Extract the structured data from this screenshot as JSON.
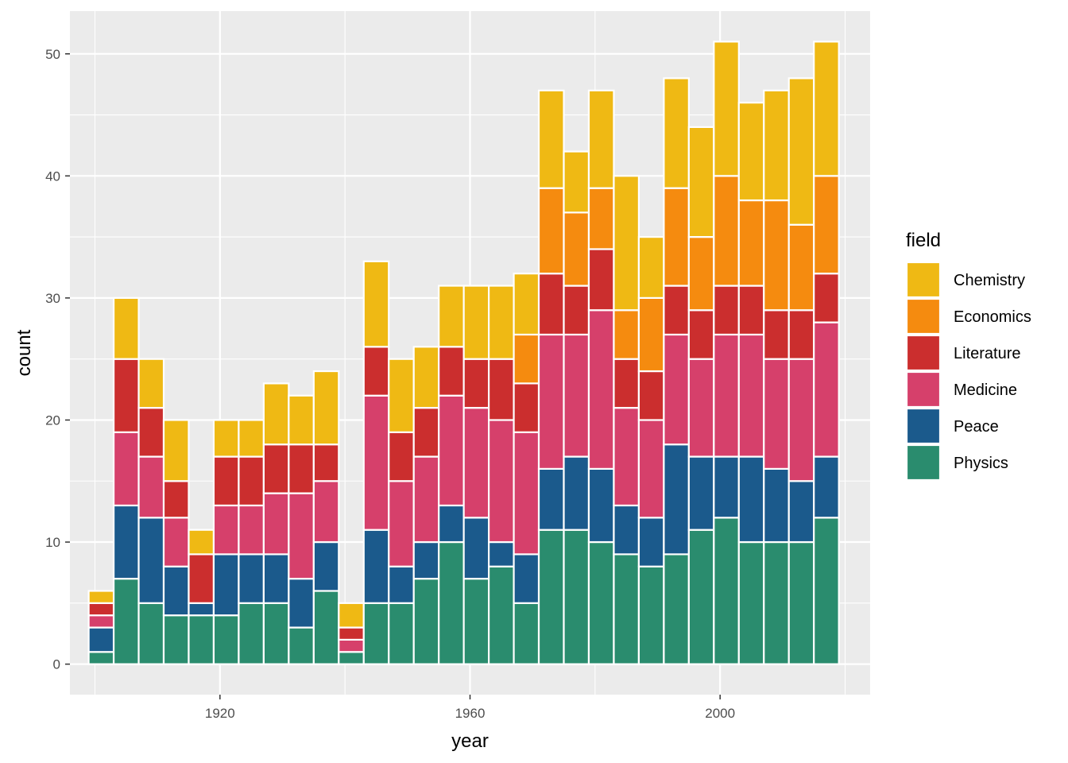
{
  "chart_data": {
    "type": "bar",
    "stacked": true,
    "xlabel": "year",
    "ylabel": "count",
    "xlim": [
      1896,
      2024
    ],
    "ylim": [
      -2.5,
      53.5
    ],
    "x_ticks": [
      1920,
      1960,
      2000
    ],
    "y_ticks": [
      0,
      10,
      20,
      30,
      40,
      50
    ],
    "grid": true,
    "legend_title": "field",
    "legend_position": "right",
    "bin_width": 4,
    "x": [
      1901,
      1905,
      1909,
      1913,
      1917,
      1921,
      1925,
      1929,
      1933,
      1937,
      1941,
      1945,
      1949,
      1953,
      1957,
      1961,
      1965,
      1969,
      1973,
      1977,
      1981,
      1985,
      1989,
      1993,
      1997,
      2001,
      2005,
      2009,
      2013,
      2017
    ],
    "series": [
      {
        "name": "Physics",
        "color": "#2A8C6E",
        "values": [
          1,
          7,
          5,
          4,
          4,
          4,
          5,
          5,
          3,
          6,
          1,
          5,
          5,
          7,
          10,
          7,
          8,
          5,
          11,
          11,
          10,
          9,
          8,
          9,
          11,
          12,
          10,
          10,
          10,
          12
        ]
      },
      {
        "name": "Peace",
        "color": "#1B5A8C",
        "values": [
          2,
          6,
          7,
          4,
          1,
          5,
          4,
          4,
          4,
          4,
          0,
          6,
          3,
          3,
          3,
          5,
          2,
          4,
          5,
          6,
          6,
          4,
          4,
          9,
          6,
          5,
          7,
          6,
          5,
          5
        ]
      },
      {
        "name": "Medicine",
        "color": "#D6406B",
        "values": [
          1,
          6,
          5,
          4,
          0,
          4,
          4,
          5,
          7,
          5,
          1,
          11,
          7,
          7,
          9,
          9,
          10,
          10,
          11,
          10,
          13,
          8,
          8,
          9,
          8,
          10,
          10,
          9,
          10,
          11
        ]
      },
      {
        "name": "Literature",
        "color": "#CB2E2E",
        "values": [
          1,
          6,
          4,
          3,
          4,
          4,
          4,
          4,
          4,
          3,
          1,
          4,
          4,
          4,
          4,
          4,
          5,
          4,
          5,
          4,
          5,
          4,
          4,
          4,
          4,
          4,
          4,
          4,
          4,
          4
        ]
      },
      {
        "name": "Economics",
        "color": "#F58B0F",
        "values": [
          0,
          0,
          0,
          0,
          0,
          0,
          0,
          0,
          0,
          0,
          0,
          0,
          0,
          0,
          0,
          0,
          0,
          4,
          7,
          6,
          5,
          4,
          6,
          8,
          6,
          9,
          7,
          9,
          7,
          8
        ]
      },
      {
        "name": "Chemistry",
        "color": "#EFB914",
        "values": [
          1,
          5,
          4,
          5,
          2,
          3,
          3,
          5,
          4,
          6,
          2,
          7,
          6,
          5,
          5,
          6,
          6,
          5,
          8,
          5,
          8,
          11,
          5,
          9,
          9,
          11,
          8,
          9,
          12,
          11
        ]
      }
    ]
  }
}
